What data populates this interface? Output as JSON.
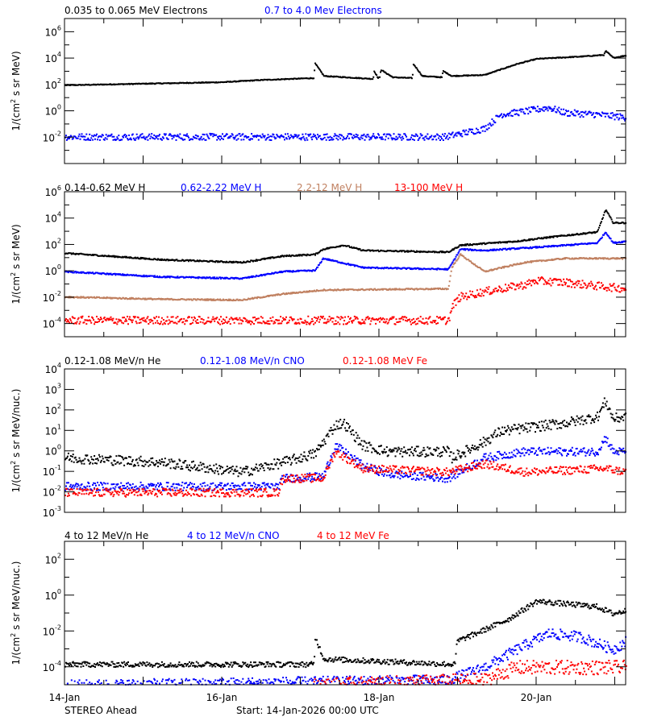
{
  "chart_data": [
    {
      "type": "scatter",
      "titles": [
        {
          "text": "0.035 to 0.065 MeV Electrons",
          "color": "#000000"
        },
        {
          "text": "0.7 to 4.0 Mev Electrons",
          "color": "#0000ff"
        }
      ],
      "ylabel": "1/(cm² s sr MeV)",
      "yscale": "log",
      "ylim": [
        0.0001,
        10000000.0
      ],
      "ytick_labels": [
        "10^6",
        "10^4",
        "10^2",
        "10^0",
        "10^-2"
      ],
      "series": [
        {
          "name": "0.035 to 0.065 MeV Electrons",
          "color": "#000000",
          "spread_decades": 0.03,
          "points": [
            [
              "14-Jan 00:00",
              100
            ],
            [
              "15-Jan 00:00",
              130
            ],
            [
              "16-Jan 00:00",
              170
            ],
            [
              "16-Jan 12:00",
              250
            ],
            [
              "17-Jan 04:00",
              350
            ],
            [
              "17-Jan 04:10",
              5000
            ],
            [
              "17-Jan 07:00",
              500
            ],
            [
              "17-Jan 22:00",
              300
            ],
            [
              "17-Jan 22:20",
              1200
            ],
            [
              "17-Jan 23:30",
              350
            ],
            [
              "18-Jan 00:00",
              400
            ],
            [
              "18-Jan 00:20",
              1500
            ],
            [
              "18-Jan 04:00",
              400
            ],
            [
              "18-Jan 10:00",
              350
            ],
            [
              "18-Jan 10:20",
              4000
            ],
            [
              "18-Jan 13:00",
              500
            ],
            [
              "18-Jan 19:00",
              400
            ],
            [
              "18-Jan 19:20",
              1200
            ],
            [
              "18-Jan 22:00",
              500
            ],
            [
              "19-Jan 08:00",
              600
            ],
            [
              "19-Jan 17:50",
              4000
            ],
            [
              "20-Jan 00:00",
              10000
            ],
            [
              "20-Jan 13:30",
              15000
            ],
            [
              "20-Jan 20:30",
              20000
            ],
            [
              "20-Jan 21:00",
              40000
            ],
            [
              "20-Jan 23:20",
              12000
            ],
            [
              "21-Jan 03:20",
              18000
            ]
          ]
        },
        {
          "name": "0.7 to 4.0 Mev Electrons",
          "color": "#0000ff",
          "spread_decades": 0.25,
          "points": [
            [
              "14-Jan 00:00",
              0.012
            ],
            [
              "18-Jan 20:00",
              0.012
            ],
            [
              "19-Jan 08:00",
              0.05
            ],
            [
              "19-Jan 13:00",
              0.6
            ],
            [
              "19-Jan 20:00",
              1.0
            ],
            [
              "20-Jan 03:40",
              2.0
            ],
            [
              "20-Jan 08:40",
              0.8
            ],
            [
              "20-Jan 18:30",
              0.6
            ],
            [
              "21-Jan 03:20",
              0.35
            ]
          ]
        }
      ]
    },
    {
      "type": "scatter",
      "titles": [
        {
          "text": "0.14-0.62 MeV H",
          "color": "#000000"
        },
        {
          "text": "0.62-2.22 MeV H",
          "color": "#0000ff"
        },
        {
          "text": "2.2-12 MeV H",
          "color": "#c08060"
        },
        {
          "text": "13-100 MeV H",
          "color": "#ff0000"
        }
      ],
      "ylabel": "1/(cm² s sr MeV)",
      "yscale": "log",
      "ylim": [
        1e-05,
        1000000.0
      ],
      "ytick_labels": [
        "10^6",
        "10^4",
        "10^2",
        "10^0",
        "10^-2",
        "10^-4"
      ],
      "series": [
        {
          "name": "0.14-0.62 MeV H",
          "color": "#000000",
          "spread_decades": 0.05,
          "points": [
            [
              "14-Jan 00:00",
              25
            ],
            [
              "15-Jan 05:30",
              8
            ],
            [
              "16-Jan 06:00",
              5
            ],
            [
              "16-Jan 18:30",
              15
            ],
            [
              "17-Jan 04:20",
              20
            ],
            [
              "17-Jan 06:45",
              50
            ],
            [
              "17-Jan 13:00",
              100
            ],
            [
              "17-Jan 19:00",
              40
            ],
            [
              "18-Jan 21:00",
              30
            ],
            [
              "19-Jan 00:40",
              100
            ],
            [
              "19-Jan 17:50",
              200
            ],
            [
              "20-Jan 03:40",
              400
            ],
            [
              "20-Jan 18:30",
              1000
            ],
            [
              "20-Jan 21:00",
              50000
            ],
            [
              "20-Jan 23:20",
              5000
            ],
            [
              "21-Jan 03:20",
              5000
            ]
          ]
        },
        {
          "name": "0.62-2.22 MeV H",
          "color": "#0000ff",
          "spread_decades": 0.05,
          "points": [
            [
              "14-Jan 00:00",
              1
            ],
            [
              "15-Jan 05:30",
              0.4
            ],
            [
              "16-Jan 06:00",
              0.3
            ],
            [
              "16-Jan 18:30",
              1
            ],
            [
              "17-Jan 04:20",
              1.2
            ],
            [
              "17-Jan 06:45",
              10
            ],
            [
              "17-Jan 19:00",
              2
            ],
            [
              "18-Jan 21:00",
              1.5
            ],
            [
              "19-Jan 00:40",
              50
            ],
            [
              "19-Jan 08:00",
              40
            ],
            [
              "20-Jan 03:40",
              80
            ],
            [
              "20-Jan 18:30",
              150
            ],
            [
              "20-Jan 21:00",
              1000
            ],
            [
              "20-Jan 23:20",
              150
            ],
            [
              "21-Jan 03:20",
              200
            ]
          ]
        },
        {
          "name": "2.2-12 MeV H",
          "color": "#c08060",
          "spread_decades": 0.05,
          "points": [
            [
              "14-Jan 00:00",
              0.012
            ],
            [
              "15-Jan 05:30",
              0.008
            ],
            [
              "16-Jan 06:00",
              0.007
            ],
            [
              "16-Jan 18:30",
              0.02
            ],
            [
              "17-Jan 06:45",
              0.04
            ],
            [
              "18-Jan 21:00",
              0.05
            ],
            [
              "18-Jan 22:00",
              2
            ],
            [
              "19-Jan 00:40",
              20
            ],
            [
              "19-Jan 08:00",
              1
            ],
            [
              "19-Jan 20:20",
              5
            ],
            [
              "20-Jan 08:40",
              10
            ],
            [
              "21-Jan 03:20",
              10
            ]
          ]
        },
        {
          "name": "13-100 MeV H",
          "color": "#ff0000",
          "spread_decades": 0.3,
          "points": [
            [
              "14-Jan 00:00",
              0.0002
            ],
            [
              "18-Jan 21:00",
              0.0002
            ],
            [
              "18-Jan 22:30",
              0.003
            ],
            [
              "19-Jan 00:40",
              0.012
            ],
            [
              "19-Jan 08:00",
              0.03
            ],
            [
              "19-Jan 20:20",
              0.1
            ],
            [
              "20-Jan 00:00",
              0.2
            ],
            [
              "20-Jan 08:40",
              0.15
            ],
            [
              "20-Jan 18:30",
              0.08
            ],
            [
              "21-Jan 03:20",
              0.05
            ]
          ]
        }
      ]
    },
    {
      "type": "scatter",
      "titles": [
        {
          "text": "0.12-1.08 MeV/n He",
          "color": "#000000"
        },
        {
          "text": "0.12-1.08 MeV/n CNO",
          "color": "#0000ff"
        },
        {
          "text": "0.12-1.08 MeV Fe",
          "color": "#ff0000"
        }
      ],
      "ylabel": "1/(cm² s sr MeV/nuc.)",
      "yscale": "log",
      "ylim": [
        0.001,
        10000.0
      ],
      "ytick_labels": [
        "10^4",
        "10^3",
        "10^2",
        "10^1",
        "10^0",
        "10^-1",
        "10^-2",
        "10^-3"
      ],
      "series": [
        {
          "name": "0.12-1.08 MeV/n He",
          "color": "#000000",
          "spread_decades": 0.25,
          "points": [
            [
              "14-Jan 00:00",
              0.5
            ],
            [
              "15-Jan 05:30",
              0.3
            ],
            [
              "16-Jan 06:00",
              0.1
            ],
            [
              "16-Jan 18:30",
              0.3
            ],
            [
              "17-Jan 04:20",
              0.8
            ],
            [
              "17-Jan 10:30",
              20
            ],
            [
              "17-Jan 13:00",
              25
            ],
            [
              "17-Jan 19:00",
              2
            ],
            [
              "18-Jan 02:30",
              1
            ],
            [
              "18-Jan 21:00",
              1
            ],
            [
              "18-Jan 22:00",
              0.5
            ],
            [
              "19-Jan 08:00",
              3
            ],
            [
              "19-Jan 13:00",
              10
            ],
            [
              "20-Jan 08:40",
              25
            ],
            [
              "20-Jan 18:30",
              50
            ],
            [
              "20-Jan 21:00",
              300
            ],
            [
              "20-Jan 23:20",
              40
            ],
            [
              "21-Jan 03:20",
              50
            ]
          ]
        },
        {
          "name": "0.12-1.08 MeV/n CNO",
          "color": "#0000ff",
          "spread_decades": 0.2,
          "points": [
            [
              "14-Jan 00:00",
              0.02
            ],
            [
              "16-Jan 17:00",
              0.02
            ],
            [
              "16-Jan 18:30",
              0.05
            ],
            [
              "17-Jan 06:45",
              0.06
            ],
            [
              "17-Jan 10:30",
              2
            ],
            [
              "17-Jan 19:00",
              0.2
            ],
            [
              "18-Jan 02:30",
              0.08
            ],
            [
              "18-Jan 21:00",
              0.05
            ],
            [
              "19-Jan 08:00",
              0.5
            ],
            [
              "19-Jan 20:20",
              1
            ],
            [
              "20-Jan 18:30",
              1
            ],
            [
              "20-Jan 21:00",
              5
            ],
            [
              "20-Jan 23:20",
              1
            ],
            [
              "21-Jan 03:20",
              1
            ]
          ]
        },
        {
          "name": "0.12-1.08 MeV Fe",
          "color": "#ff0000",
          "spread_decades": 0.2,
          "points": [
            [
              "14-Jan 00:00",
              0.01
            ],
            [
              "16-Jan 17:00",
              0.01
            ],
            [
              "16-Jan 18:30",
              0.05
            ],
            [
              "17-Jan 06:45",
              0.05
            ],
            [
              "17-Jan 10:30",
              1
            ],
            [
              "17-Jan 19:00",
              0.15
            ],
            [
              "18-Jan 21:00",
              0.1
            ],
            [
              "19-Jan 08:00",
              0.25
            ],
            [
              "19-Jan 20:20",
              0.1
            ],
            [
              "20-Jan 21:00",
              0.15
            ],
            [
              "21-Jan 03:20",
              0.1
            ]
          ]
        }
      ]
    },
    {
      "type": "scatter",
      "titles": [
        {
          "text": "4 to 12 MeV/n He",
          "color": "#000000"
        },
        {
          "text": "4 to 12 MeV/n CNO",
          "color": "#0000ff"
        },
        {
          "text": "4 to 12 MeV Fe",
          "color": "#ff0000"
        }
      ],
      "ylabel": "1/(cm² s sr MeV/nuc.)",
      "yscale": "log",
      "ylim": [
        1e-05,
        1000.0
      ],
      "ytick_labels": [
        "10^2",
        "10^0",
        "10^-2",
        "10^-4"
      ],
      "xtick_labels": [
        "14-Jan",
        "16-Jan",
        "18-Jan",
        "20-Jan"
      ],
      "series": [
        {
          "name": "4 to 12 MeV/n He",
          "color": "#000000",
          "spread_decades": 0.15,
          "points": [
            [
              "14-Jan 00:00",
              0.00015
            ],
            [
              "17-Jan 04:00",
              0.00015
            ],
            [
              "17-Jan 04:20",
              0.005
            ],
            [
              "17-Jan 07:00",
              0.0003
            ],
            [
              "18-Jan 23:00",
              0.00015
            ],
            [
              "18-Jan 23:40",
              0.003
            ],
            [
              "19-Jan 05:30",
              0.008
            ],
            [
              "19-Jan 15:20",
              0.05
            ],
            [
              "20-Jan 00:00",
              0.5
            ],
            [
              "20-Jan 13:30",
              0.3
            ],
            [
              "20-Jan 18:30",
              0.25
            ],
            [
              "20-Jan 23:20",
              0.1
            ],
            [
              "21-Jan 03:20",
              0.15
            ]
          ]
        },
        {
          "name": "4 to 12 MeV/n CNO",
          "color": "#0000ff",
          "spread_decades": 0.3,
          "points": [
            [
              "14-Jan 00:00",
              1e-05
            ],
            [
              "18-Jan 21:00",
              2e-05
            ],
            [
              "19-Jan 08:00",
              0.0001
            ],
            [
              "19-Jan 17:50",
              0.001
            ],
            [
              "20-Jan 03:40",
              0.008
            ],
            [
              "20-Jan 13:30",
              0.005
            ],
            [
              "20-Jan 23:20",
              0.001
            ],
            [
              "21-Jan 03:20",
              0.003
            ]
          ]
        },
        {
          "name": "4 to 12 MeV Fe",
          "color": "#ff0000",
          "spread_decades": 0.4,
          "points": [
            [
              "17-Jan 04:00",
              1e-05
            ],
            [
              "19-Jan 08:00",
              2e-05
            ],
            [
              "19-Jan 17:50",
              0.0001
            ],
            [
              "21-Jan 03:20",
              0.0001
            ]
          ]
        }
      ]
    }
  ],
  "xaxis": {
    "xlim": [
      "14-Jan 00:00",
      "21-Jan 03:20"
    ],
    "xtick_labels": [
      "14-Jan",
      "16-Jan",
      "18-Jan",
      "20-Jan"
    ]
  },
  "footer": {
    "spacecraft": "STEREO Ahead",
    "start": "Start: 14-Jan-2026 00:00 UTC"
  }
}
